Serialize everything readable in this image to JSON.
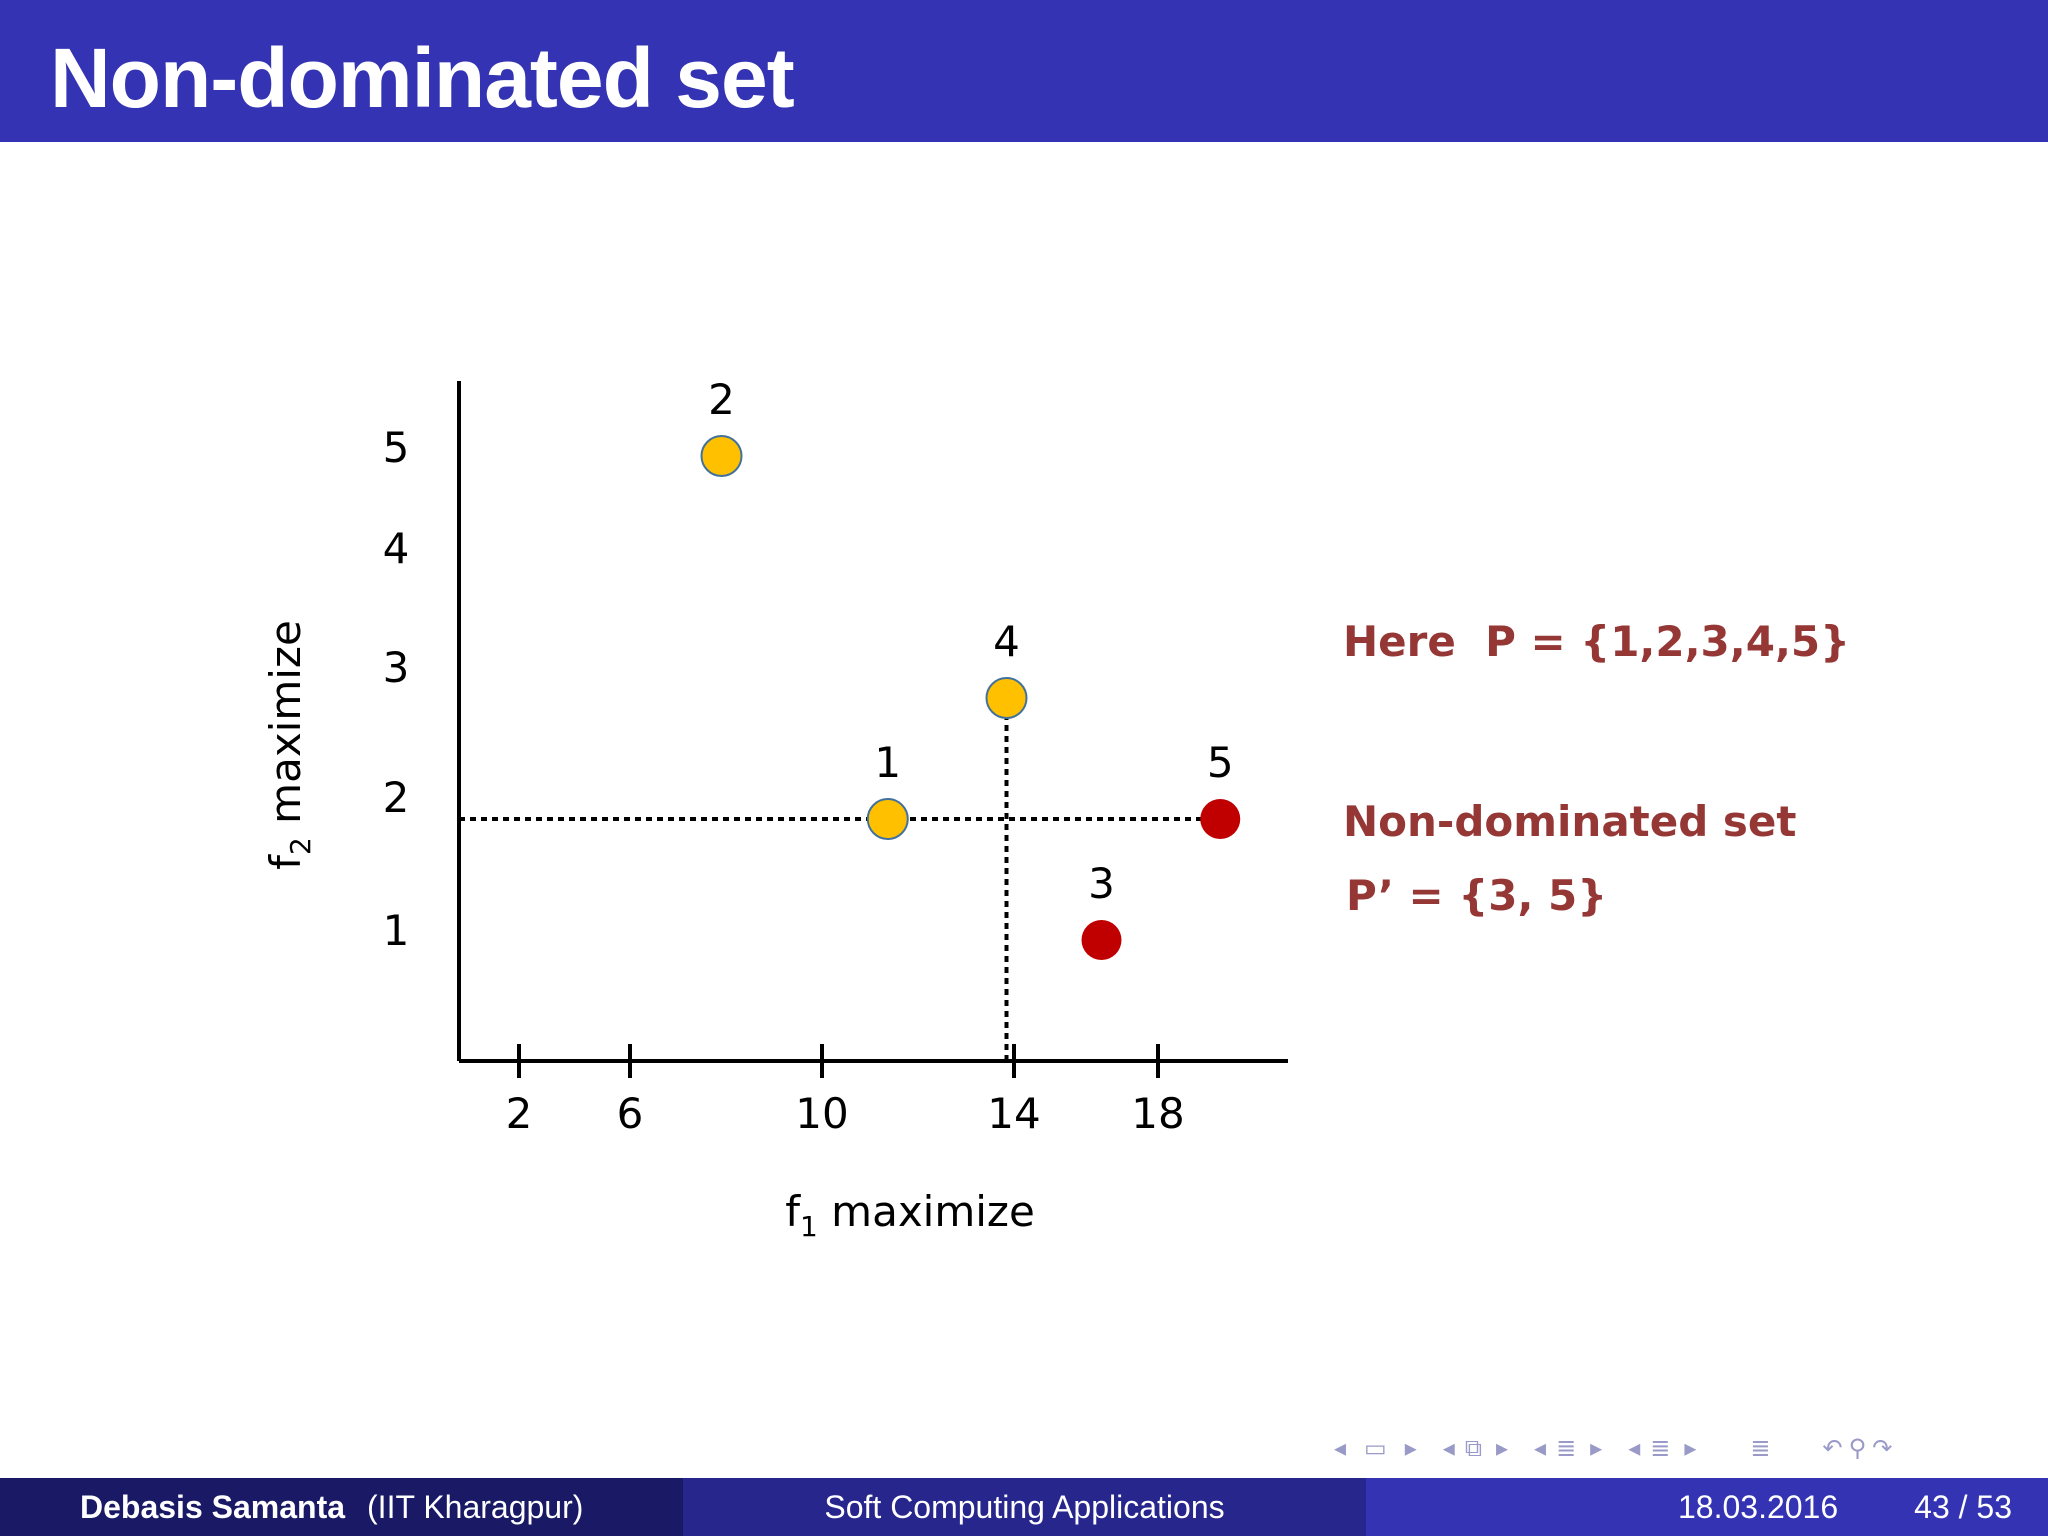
{
  "header": {
    "title": "Non-dominated set"
  },
  "chart_data": {
    "type": "scatter",
    "xlabel": {
      "main": "f",
      "sub": "1",
      "rest": " maximize"
    },
    "ylabel": {
      "main": "f",
      "sub": "2",
      "rest": " maximize"
    },
    "x_ticks": [
      2,
      6,
      10,
      14,
      18
    ],
    "y_ticks": [
      1,
      2,
      3,
      4,
      5
    ],
    "points": [
      {
        "label": "1",
        "x": 10.5,
        "y": 2,
        "color": "#ffc000",
        "group": "dominated"
      },
      {
        "label": "2",
        "x": 7,
        "y": 5,
        "color": "#ffc000",
        "group": "dominated"
      },
      {
        "label": "3",
        "x": 15,
        "y": 1,
        "color": "#c00000",
        "group": "non-dominated"
      },
      {
        "label": "4",
        "x": 13,
        "y": 3,
        "color": "#ffc000",
        "group": "dominated"
      },
      {
        "label": "5",
        "x": 17.5,
        "y": 2,
        "color": "#c00000",
        "group": "non-dominated"
      }
    ],
    "reference_lines": [
      {
        "orientation": "horizontal",
        "value": 2,
        "from": 0,
        "to": 17.5,
        "style": "dotted"
      },
      {
        "orientation": "vertical",
        "value": 13,
        "from": 0,
        "to": 3,
        "style": "dotted"
      }
    ],
    "grid": false
  },
  "annotations": {
    "set_p": "Here  P = {1,2,3,4,5}",
    "nd_title": "Non-dominated set",
    "nd_set": "P’ = {3, 5}",
    "color": "#953735"
  },
  "nav_icons": [
    "arrow-left-icon",
    "frame-icon",
    "arrow-right-icon",
    "arrow-left-icon",
    "subsection-icon",
    "arrow-right-icon",
    "arrow-left-icon",
    "section-icon",
    "arrow-right-icon",
    "arrow-left-icon",
    "slide-icon",
    "arrow-right-icon",
    "toc-icon",
    "undo-icon",
    "search-icon",
    "redo-icon"
  ],
  "footer": {
    "author": "Debasis Samanta",
    "affiliation": "(IIT Kharagpur)",
    "course": "Soft Computing Applications",
    "date": "18.03.2016",
    "page": "43 / 53"
  }
}
